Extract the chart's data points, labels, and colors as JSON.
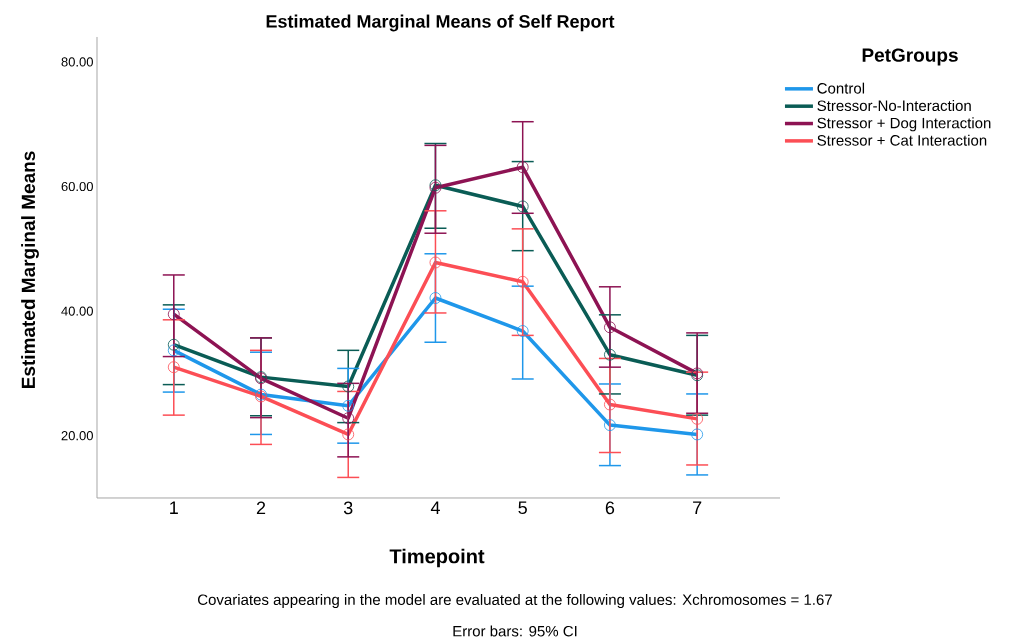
{
  "chart_data": {
    "type": "line",
    "title": "Estimated Marginal Means of Self Report",
    "xlabel": "Timepoint",
    "ylabel": "Estimated Marginal Means",
    "legend_title": "PetGroups",
    "categories": [
      "1",
      "2",
      "3",
      "4",
      "5",
      "6",
      "7"
    ],
    "ylim": [
      10,
      84
    ],
    "yticks": [
      {
        "value": 20,
        "label": "20.00"
      },
      {
        "value": 40,
        "label": "40.00"
      },
      {
        "value": 60,
        "label": "60.00"
      },
      {
        "value": 80,
        "label": "80.00"
      }
    ],
    "series": [
      {
        "name": "Control",
        "color": "#1f97ea",
        "values": [
          33.7,
          26.6,
          24.8,
          42.1,
          36.8,
          21.7,
          20.2
        ],
        "errors": [
          [
            27.0,
            40.3
          ],
          [
            20.2,
            33.4
          ],
          [
            18.8,
            30.8
          ],
          [
            35.0,
            49.2
          ],
          [
            29.1,
            44.0
          ],
          [
            15.2,
            28.3
          ],
          [
            13.7,
            26.7
          ]
        ]
      },
      {
        "name": "Stressor-No-Interaction",
        "color": "#0a5c55",
        "values": [
          34.6,
          29.4,
          27.9,
          60.2,
          56.8,
          33.0,
          29.7
        ],
        "errors": [
          [
            28.2,
            41.0
          ],
          [
            23.2,
            35.7
          ],
          [
            22.1,
            33.7
          ],
          [
            53.3,
            66.9
          ],
          [
            49.7,
            64.0
          ],
          [
            26.7,
            39.4
          ],
          [
            23.3,
            36.1
          ]
        ]
      },
      {
        "name": "Stressor + Dog Interaction",
        "color": "#8d1353",
        "values": [
          39.5,
          29.2,
          22.8,
          59.8,
          63.1,
          37.4,
          30.0
        ],
        "errors": [
          [
            32.7,
            45.8
          ],
          [
            22.9,
            35.7
          ],
          [
            16.6,
            28.4
          ],
          [
            52.5,
            66.6
          ],
          [
            55.7,
            70.4
          ],
          [
            31.0,
            43.9
          ],
          [
            23.6,
            36.5
          ]
        ]
      },
      {
        "name": "Stressor + Cat Interaction",
        "color": "#fc4e55",
        "values": [
          31.0,
          26.3,
          20.2,
          47.8,
          44.7,
          25.0,
          22.7
        ],
        "errors": [
          [
            23.3,
            38.6
          ],
          [
            18.6,
            33.7
          ],
          [
            13.3,
            27.1
          ],
          [
            39.7,
            56.1
          ],
          [
            36.1,
            53.2
          ],
          [
            17.3,
            32.4
          ],
          [
            15.3,
            30.2
          ]
        ]
      }
    ],
    "marker": "circle",
    "line_style": "solid",
    "legend": "right",
    "grid": false,
    "annotations": [
      "Covariates appearing in the model are evaluated at the following values: Xchromosomes = 1.67",
      "Error bars: 95% CI"
    ]
  }
}
